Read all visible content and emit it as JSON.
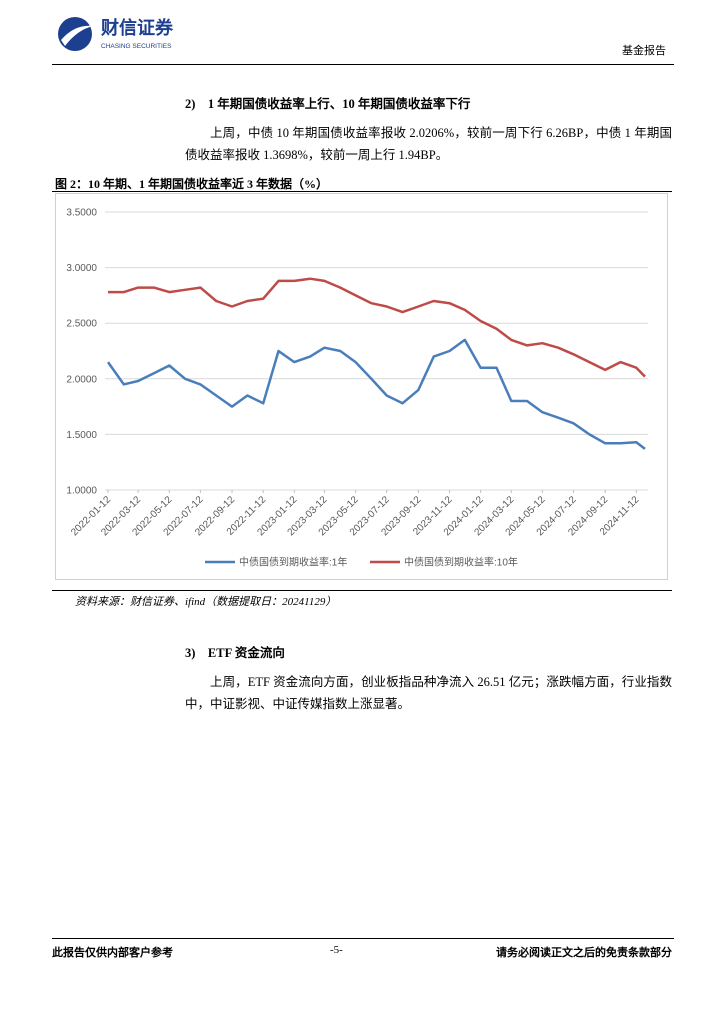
{
  "header": {
    "logo_name": "财信证券",
    "logo_sub": "CHASING SECURITIES",
    "report_type": "基金报告"
  },
  "section2": {
    "heading": "2)　1 年期国债收益率上行、10 年期国债收益率下行",
    "paragraph": "上周，中债 10 年期国债收益率报收 2.0206%，较前一周下行 6.26BP，中债 1 年期国债收益率报收 1.3698%，较前一周上行 1.94BP。"
  },
  "figure": {
    "caption": "图 2：10 年期、1 年期国债收益率近 3 年数据（%）",
    "source": "资料来源：财信证券、ifind（数据提取日：20241129）"
  },
  "chart_data": {
    "type": "line",
    "x": [
      "2022-01-12",
      "2022-02-12",
      "2022-03-12",
      "2022-04-12",
      "2022-05-12",
      "2022-06-12",
      "2022-07-12",
      "2022-08-12",
      "2022-09-12",
      "2022-10-12",
      "2022-11-12",
      "2022-12-12",
      "2023-01-12",
      "2023-02-12",
      "2023-03-12",
      "2023-04-12",
      "2023-05-12",
      "2023-06-12",
      "2023-07-12",
      "2023-08-12",
      "2023-09-12",
      "2023-10-12",
      "2023-11-12",
      "2023-12-12",
      "2024-01-12",
      "2024-02-12",
      "2024-03-12",
      "2024-04-12",
      "2024-05-12",
      "2024-06-12",
      "2024-07-12",
      "2024-08-12",
      "2024-09-12",
      "2024-10-12",
      "2024-11-12",
      "2024-11-29"
    ],
    "series": [
      {
        "name": "中债国债到期收益率:1年",
        "color": "#4a7ebb",
        "values": [
          2.15,
          1.95,
          1.98,
          2.05,
          2.12,
          2.0,
          1.95,
          1.85,
          1.75,
          1.85,
          1.78,
          2.25,
          2.15,
          2.2,
          2.28,
          2.25,
          2.15,
          2.0,
          1.85,
          1.78,
          1.9,
          2.2,
          2.25,
          2.35,
          2.1,
          2.1,
          1.8,
          1.8,
          1.7,
          1.65,
          1.6,
          1.5,
          1.42,
          1.42,
          1.43,
          1.37
        ]
      },
      {
        "name": "中债国债到期收益率:10年",
        "color": "#be4b48",
        "values": [
          2.78,
          2.78,
          2.82,
          2.82,
          2.78,
          2.8,
          2.82,
          2.7,
          2.65,
          2.7,
          2.72,
          2.88,
          2.88,
          2.9,
          2.88,
          2.82,
          2.75,
          2.68,
          2.65,
          2.6,
          2.65,
          2.7,
          2.68,
          2.62,
          2.52,
          2.45,
          2.35,
          2.3,
          2.32,
          2.28,
          2.22,
          2.15,
          2.08,
          2.15,
          2.1,
          2.02
        ]
      }
    ],
    "ylim": [
      1.0,
      3.5
    ],
    "yticks": [
      {
        "value": 1.0,
        "label": "1.0000"
      },
      {
        "value": 1.5,
        "label": "1.5000"
      },
      {
        "value": 2.0,
        "label": "2.0000"
      },
      {
        "value": 2.5,
        "label": "2.5000"
      },
      {
        "value": 3.0,
        "label": "3.0000"
      },
      {
        "value": 3.5,
        "label": "3.5000"
      }
    ],
    "xticks": [
      "2022-01-12",
      "2022-03-12",
      "2022-05-12",
      "2022-07-12",
      "2022-09-12",
      "2022-11-12",
      "2023-01-12",
      "2023-03-12",
      "2023-05-12",
      "2023-07-12",
      "2023-09-12",
      "2023-11-12",
      "2024-01-12",
      "2024-03-12",
      "2024-05-12",
      "2024-07-12",
      "2024-09-12",
      "2024-11-12"
    ],
    "grid": true,
    "legend": "bottom"
  },
  "section3": {
    "heading": "3)　ETF 资金流向",
    "paragraph": "上周，ETF 资金流向方面，创业板指品种净流入 26.51 亿元；涨跌幅方面，行业指数中，中证影视、中证传媒指数上涨显著。"
  },
  "footer": {
    "left": "此报告仅供内部客户参考",
    "page": "-5-",
    "right": "请务必阅读正文之后的免责条款部分"
  }
}
